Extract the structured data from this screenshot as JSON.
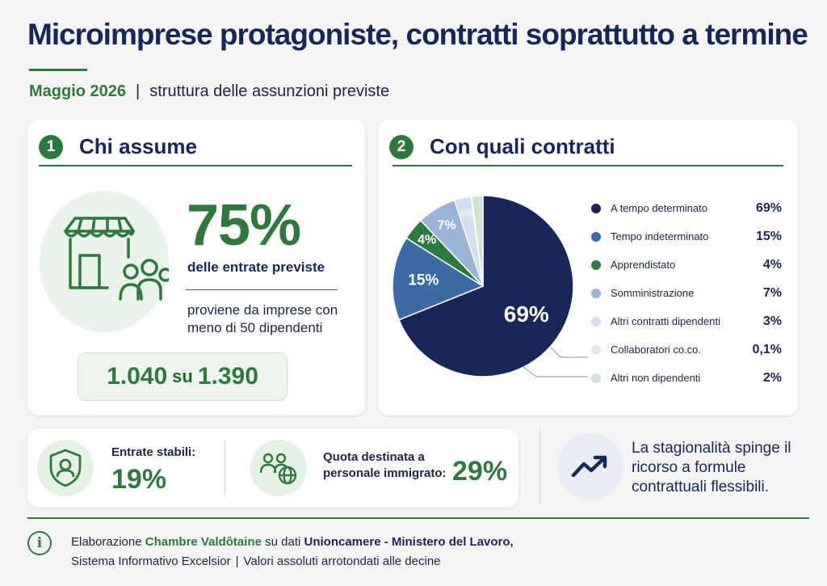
{
  "header": {
    "title": "Microimprese protagoniste, contratti soprattutto a termine",
    "month": "Maggio 2026",
    "separator": "|",
    "description": "struttura delle assunzioni previste"
  },
  "section1": {
    "number": "1",
    "title": "Chi assume",
    "icon": "shop-people-icon",
    "percent": "75%",
    "percent_label": "delle entrate previste",
    "description": "proviene da imprese con meno di 50 dipendenti",
    "count_value": "1.040",
    "count_joiner": "su",
    "count_total": "1.390"
  },
  "section2": {
    "number": "2",
    "title": "Con quali contratti",
    "slice_labels": [
      "69%",
      "15%",
      "4%",
      "7%",
      "3%"
    ]
  },
  "chart_data": {
    "type": "pie",
    "title": "Con quali contratti",
    "slices": [
      {
        "label": "A tempo determinato",
        "value": 69,
        "display": "69%",
        "color": "#17275a"
      },
      {
        "label": "Tempo indeterminato",
        "value": 15,
        "display": "15%",
        "color": "#3d69a5"
      },
      {
        "label": "Apprendistato",
        "value": 4,
        "display": "4%",
        "color": "#2e7a3e"
      },
      {
        "label": "Somministrazione",
        "value": 7,
        "display": "7%",
        "color": "#9bb4d6"
      },
      {
        "label": "Altri contratti dipendenti",
        "value": 3,
        "display": "3%",
        "color": "#d3deef"
      },
      {
        "label": "Collaboratori co.co.",
        "value": 0.1,
        "display": "0,1%",
        "color": "#dcebdc"
      },
      {
        "label": "Altri non dipendenti",
        "value": 2,
        "display": "2%",
        "color": "#cfe3cf"
      }
    ]
  },
  "stats": {
    "stable_label": "Entrate stabili:",
    "stable_value": "19%",
    "immigrant_label_1": "Quota destinata a",
    "immigrant_label_2": "personale immigrato:",
    "immigrant_value": "29%"
  },
  "trend": {
    "text": "La stagionalità spinge il ricorso a formule contrattuali flessibili."
  },
  "footer": {
    "info_icon": "i",
    "prefix": "Elaborazione",
    "org": "Chambre Valdôtaine",
    "middle": "su dati",
    "source": "Unioncamere - Ministero del Lavoro,",
    "line2a": "Sistema Informativo Excelsior",
    "separator": "|",
    "line2b": "Valori assoluti arrotondati alle decine"
  },
  "colors": {
    "navy": "#17275a",
    "green": "#2e7a3e"
  }
}
